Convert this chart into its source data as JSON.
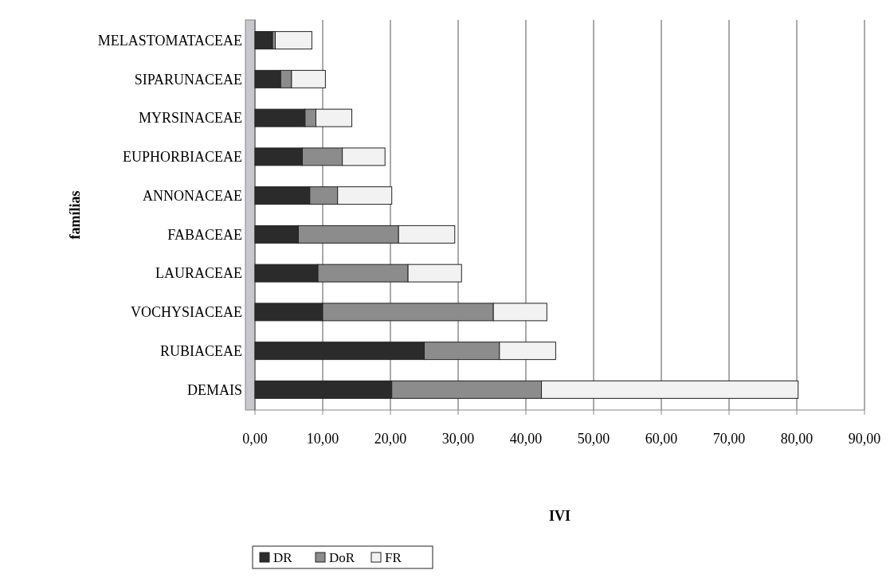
{
  "chart_data": {
    "type": "bar",
    "orientation": "horizontal",
    "stacked": true,
    "categories": [
      "MELASTOMATACEAE",
      "SIPARUNACEAE",
      "MYRSINACEAE",
      "EUPHORBIACEAE",
      "ANNONACEAE",
      "FABACEAE",
      "LAURACEAE",
      "VOCHYSIACEAE",
      "RUBIACEAE",
      "DEMAIS"
    ],
    "series": [
      {
        "name": "DR",
        "color": "#2b2b2b",
        "values": [
          2.6,
          3.8,
          7.4,
          7.0,
          8.1,
          6.4,
          9.3,
          10.0,
          25.0,
          20.2
        ]
      },
      {
        "name": "DoR",
        "color": "#8c8c8c",
        "values": [
          0.4,
          1.6,
          1.6,
          5.9,
          4.1,
          14.8,
          13.3,
          25.2,
          11.1,
          22.1
        ]
      },
      {
        "name": "FR",
        "color": "#f2f2f2",
        "values": [
          5.4,
          5.0,
          5.3,
          6.3,
          8.0,
          8.3,
          7.9,
          7.9,
          8.3,
          37.9
        ]
      }
    ],
    "xlim": [
      0,
      90
    ],
    "xticks": [
      {
        "value": 0,
        "label": "0,00"
      },
      {
        "value": 10,
        "label": "10,00"
      },
      {
        "value": 20,
        "label": "20,00"
      },
      {
        "value": 30,
        "label": "30,00"
      },
      {
        "value": 40,
        "label": "40,00"
      },
      {
        "value": 50,
        "label": "50,00"
      },
      {
        "value": 60,
        "label": "60,00"
      },
      {
        "value": 70,
        "label": "70,00"
      },
      {
        "value": 80,
        "label": "80,00"
      },
      {
        "value": 90,
        "label": "90,00"
      }
    ],
    "xlabel": "IVI",
    "ylabel": "famílias",
    "grid": "x",
    "legend": "bottom"
  }
}
